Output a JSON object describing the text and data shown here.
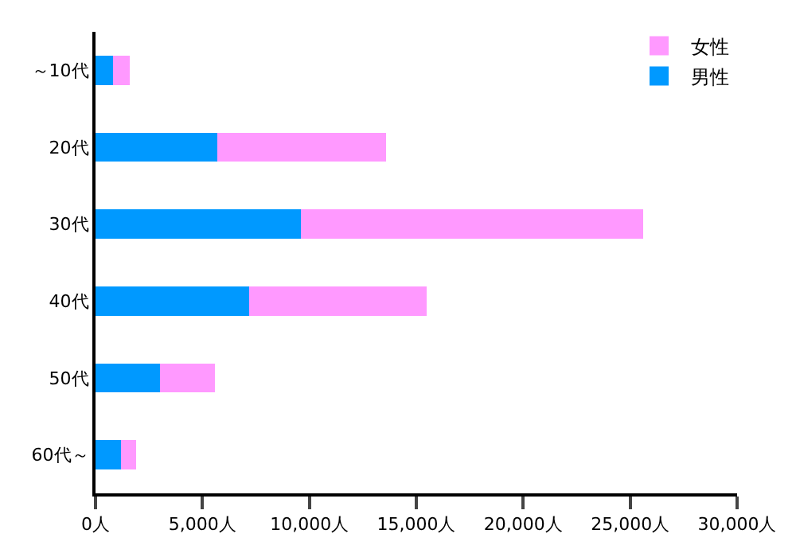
{
  "chart_data": {
    "type": "bar",
    "orientation": "horizontal",
    "stacked": true,
    "categories": [
      "～10代",
      "20代",
      "30代",
      "40代",
      "50代",
      "60代～"
    ],
    "series": [
      {
        "name": "男性",
        "color": "#0099ff",
        "values": [
          800,
          5700,
          9600,
          7200,
          3000,
          1200
        ]
      },
      {
        "name": "女性",
        "color": "#ff99ff",
        "values": [
          800,
          7900,
          16000,
          8300,
          2600,
          700
        ]
      }
    ],
    "xlim": [
      0,
      30000
    ],
    "xticks": [
      {
        "value": 0,
        "label": "0人"
      },
      {
        "value": 5000,
        "label": "5,000人"
      },
      {
        "value": 10000,
        "label": "10,000人"
      },
      {
        "value": 15000,
        "label": "15,000人"
      },
      {
        "value": 20000,
        "label": "20,000人"
      },
      {
        "value": 25000,
        "label": "25,000人"
      },
      {
        "value": 30000,
        "label": "30,000人"
      }
    ],
    "grid": false,
    "legend": "top right"
  }
}
